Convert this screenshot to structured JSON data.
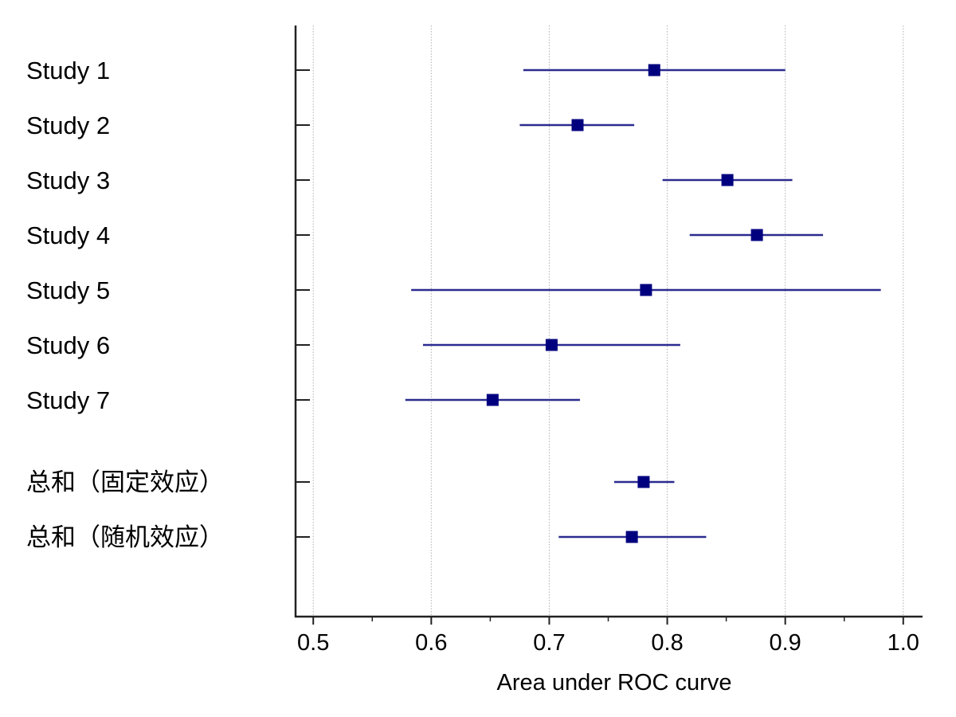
{
  "chart_data": {
    "type": "forest",
    "xlabel": "Area under ROC curve",
    "xlim": [
      0.485,
      1.015
    ],
    "xticks": [
      0.5,
      0.6,
      0.7,
      0.8,
      0.9,
      1.0
    ],
    "xtick_labels": [
      "0.5",
      "0.6",
      "0.7",
      "0.8",
      "0.9",
      "1.0"
    ],
    "minor_xticks": [
      0.55,
      0.65,
      0.75,
      0.85,
      0.95
    ],
    "grid": "vertical dotted at major ticks",
    "marker": "square",
    "colors": {
      "marker": "#00007f",
      "ci_line": "#2b2b8f",
      "axis": "#222222",
      "grid": "#b0b0b0"
    },
    "rows": [
      {
        "label": "Study 1",
        "auc": 0.789,
        "lower": 0.678,
        "upper": 0.9
      },
      {
        "label": "Study 2",
        "auc": 0.724,
        "lower": 0.675,
        "upper": 0.772
      },
      {
        "label": "Study 3",
        "auc": 0.851,
        "lower": 0.796,
        "upper": 0.906
      },
      {
        "label": "Study 4",
        "auc": 0.876,
        "lower": 0.819,
        "upper": 0.932
      },
      {
        "label": "Study 5",
        "auc": 0.782,
        "lower": 0.583,
        "upper": 0.981
      },
      {
        "label": "Study 6",
        "auc": 0.702,
        "lower": 0.593,
        "upper": 0.811
      },
      {
        "label": "Study 7",
        "auc": 0.652,
        "lower": 0.578,
        "upper": 0.726
      },
      {
        "label": "总和（固定效应）",
        "auc": 0.78,
        "lower": 0.755,
        "upper": 0.806,
        "summary": true
      },
      {
        "label": "总和（随机效应）",
        "auc": 0.77,
        "lower": 0.708,
        "upper": 0.833,
        "summary": true
      }
    ]
  }
}
